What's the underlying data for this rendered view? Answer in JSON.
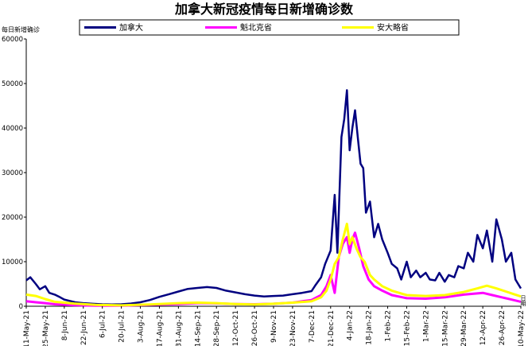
{
  "chart_data": {
    "type": "line",
    "title": "加拿大新冠疫情每日新增确诊数",
    "ylabel": "每日新增确诊",
    "xlabel": "日期",
    "ylim": [
      0,
      60000
    ],
    "yticks": [
      0,
      10000,
      20000,
      30000,
      40000,
      50000,
      60000
    ],
    "legend_position": "top",
    "grid": false,
    "x_ticks": [
      "11-May-21",
      "25-May-21",
      "8-Jun-21",
      "22-Jun-21",
      "6-Jul-21",
      "20-Jul-21",
      "3-Aug-21",
      "17-Aug-21",
      "31-Aug-21",
      "14-Sep-21",
      "28-Sep-21",
      "12-Oct-21",
      "26-Oct-21",
      "9-Nov-21",
      "23-Nov-21",
      "7-Dec-21",
      "21-Dec-21",
      "4-Jan-22",
      "18-Jan-22",
      "1-Feb-22",
      "15-Feb-22",
      "1-Mar-22",
      "15-Mar-22",
      "29-Mar-22",
      "12-Apr-22",
      "26-Apr-22",
      "10-May-22"
    ],
    "x_start": "2021-05-11",
    "x_end": "2022-05-10",
    "series": [
      {
        "name": "加拿大",
        "color": "#000080",
        "points": [
          [
            "2021-05-11",
            5800
          ],
          [
            "2021-05-14",
            6500
          ],
          [
            "2021-05-18",
            5000
          ],
          [
            "2021-05-21",
            3800
          ],
          [
            "2021-05-25",
            4500
          ],
          [
            "2021-05-28",
            3000
          ],
          [
            "2021-06-01",
            2600
          ],
          [
            "2021-06-05",
            2000
          ],
          [
            "2021-06-08",
            1500
          ],
          [
            "2021-06-12",
            1200
          ],
          [
            "2021-06-16",
            900
          ],
          [
            "2021-06-22",
            700
          ],
          [
            "2021-06-29",
            550
          ],
          [
            "2021-07-06",
            450
          ],
          [
            "2021-07-13",
            400
          ],
          [
            "2021-07-20",
            450
          ],
          [
            "2021-07-27",
            600
          ],
          [
            "2021-08-03",
            900
          ],
          [
            "2021-08-10",
            1400
          ],
          [
            "2021-08-17",
            2100
          ],
          [
            "2021-08-24",
            2700
          ],
          [
            "2021-08-31",
            3300
          ],
          [
            "2021-09-07",
            3900
          ],
          [
            "2021-09-14",
            4100
          ],
          [
            "2021-09-21",
            4300
          ],
          [
            "2021-09-28",
            4100
          ],
          [
            "2021-10-05",
            3500
          ],
          [
            "2021-10-12",
            3100
          ],
          [
            "2021-10-19",
            2700
          ],
          [
            "2021-10-26",
            2400
          ],
          [
            "2021-11-02",
            2200
          ],
          [
            "2021-11-09",
            2300
          ],
          [
            "2021-11-16",
            2400
          ],
          [
            "2021-11-23",
            2700
          ],
          [
            "2021-11-30",
            3000
          ],
          [
            "2021-12-07",
            3400
          ],
          [
            "2021-12-10",
            4800
          ],
          [
            "2021-12-14",
            6500
          ],
          [
            "2021-12-17",
            9500
          ],
          [
            "2021-12-21",
            12500
          ],
          [
            "2021-12-24",
            25000
          ],
          [
            "2021-12-26",
            12000
          ],
          [
            "2021-12-29",
            38000
          ],
          [
            "2021-12-31",
            42000
          ],
          [
            "2022-01-02",
            48500
          ],
          [
            "2022-01-04",
            35000
          ],
          [
            "2022-01-06",
            40000
          ],
          [
            "2022-01-08",
            44000
          ],
          [
            "2022-01-10",
            38000
          ],
          [
            "2022-01-12",
            32000
          ],
          [
            "2022-01-14",
            31000
          ],
          [
            "2022-01-16",
            21000
          ],
          [
            "2022-01-19",
            23500
          ],
          [
            "2022-01-22",
            15500
          ],
          [
            "2022-01-25",
            18500
          ],
          [
            "2022-01-28",
            15000
          ],
          [
            "2022-02-01",
            12000
          ],
          [
            "2022-02-04",
            9500
          ],
          [
            "2022-02-08",
            8500
          ],
          [
            "2022-02-11",
            6000
          ],
          [
            "2022-02-15",
            10000
          ],
          [
            "2022-02-18",
            6500
          ],
          [
            "2022-02-22",
            8000
          ],
          [
            "2022-02-25",
            6500
          ],
          [
            "2022-03-01",
            7500
          ],
          [
            "2022-03-04",
            6000
          ],
          [
            "2022-03-08",
            5800
          ],
          [
            "2022-03-11",
            7500
          ],
          [
            "2022-03-15",
            5500
          ],
          [
            "2022-03-18",
            7000
          ],
          [
            "2022-03-22",
            6500
          ],
          [
            "2022-03-25",
            9000
          ],
          [
            "2022-03-29",
            8500
          ],
          [
            "2022-04-01",
            12000
          ],
          [
            "2022-04-05",
            10000
          ],
          [
            "2022-04-08",
            16000
          ],
          [
            "2022-04-12",
            13000
          ],
          [
            "2022-04-15",
            17000
          ],
          [
            "2022-04-19",
            10000
          ],
          [
            "2022-04-22",
            19500
          ],
          [
            "2022-04-26",
            15000
          ],
          [
            "2022-04-29",
            10000
          ],
          [
            "2022-05-03",
            12000
          ],
          [
            "2022-05-06",
            6000
          ],
          [
            "2022-05-10",
            4000
          ]
        ]
      },
      {
        "name": "魁北克省",
        "color": "#ff00ff",
        "points": [
          [
            "2021-05-11",
            1100
          ],
          [
            "2021-05-18",
            900
          ],
          [
            "2021-05-25",
            700
          ],
          [
            "2021-06-01",
            450
          ],
          [
            "2021-06-15",
            250
          ],
          [
            "2021-07-01",
            150
          ],
          [
            "2021-07-20",
            120
          ],
          [
            "2021-08-10",
            300
          ],
          [
            "2021-08-31",
            500
          ],
          [
            "2021-09-14",
            700
          ],
          [
            "2021-09-28",
            650
          ],
          [
            "2021-10-12",
            500
          ],
          [
            "2021-10-26",
            450
          ],
          [
            "2021-11-09",
            550
          ],
          [
            "2021-11-23",
            800
          ],
          [
            "2021-12-07",
            1400
          ],
          [
            "2021-12-14",
            2500
          ],
          [
            "2021-12-18",
            4500
          ],
          [
            "2021-12-21",
            7000
          ],
          [
            "2021-12-24",
            3000
          ],
          [
            "2021-12-27",
            11000
          ],
          [
            "2021-12-30",
            14000
          ],
          [
            "2022-01-02",
            15500
          ],
          [
            "2022-01-04",
            12000
          ],
          [
            "2022-01-06",
            15000
          ],
          [
            "2022-01-08",
            16500
          ],
          [
            "2022-01-11",
            13000
          ],
          [
            "2022-01-14",
            9000
          ],
          [
            "2022-01-18",
            6000
          ],
          [
            "2022-01-22",
            4500
          ],
          [
            "2022-01-28",
            3500
          ],
          [
            "2022-02-04",
            2500
          ],
          [
            "2022-02-15",
            1800
          ],
          [
            "2022-03-01",
            1700
          ],
          [
            "2022-03-15",
            2000
          ],
          [
            "2022-03-29",
            2600
          ],
          [
            "2022-04-12",
            3000
          ],
          [
            "2022-04-19",
            2500
          ],
          [
            "2022-04-26",
            2000
          ],
          [
            "2022-05-03",
            1500
          ],
          [
            "2022-05-10",
            1000
          ]
        ]
      },
      {
        "name": "安大略省",
        "color": "#ffff00",
        "points": [
          [
            "2021-05-11",
            2600
          ],
          [
            "2021-05-18",
            2300
          ],
          [
            "2021-05-25",
            1600
          ],
          [
            "2021-06-01",
            1000
          ],
          [
            "2021-06-15",
            600
          ],
          [
            "2021-07-01",
            300
          ],
          [
            "2021-07-20",
            200
          ],
          [
            "2021-08-10",
            400
          ],
          [
            "2021-08-31",
            700
          ],
          [
            "2021-09-14",
            800
          ],
          [
            "2021-09-28",
            700
          ],
          [
            "2021-10-12",
            500
          ],
          [
            "2021-10-26",
            400
          ],
          [
            "2021-11-09",
            550
          ],
          [
            "2021-11-23",
            800
          ],
          [
            "2021-12-07",
            1100
          ],
          [
            "2021-12-14",
            2000
          ],
          [
            "2021-12-18",
            3500
          ],
          [
            "2021-12-21",
            6000
          ],
          [
            "2021-12-24",
            9500
          ],
          [
            "2021-12-27",
            11000
          ],
          [
            "2021-12-30",
            15000
          ],
          [
            "2022-01-02",
            18500
          ],
          [
            "2022-01-04",
            14000
          ],
          [
            "2022-01-06",
            15500
          ],
          [
            "2022-01-09",
            13000
          ],
          [
            "2022-01-12",
            11000
          ],
          [
            "2022-01-15",
            10000
          ],
          [
            "2022-01-19",
            7000
          ],
          [
            "2022-01-22",
            6000
          ],
          [
            "2022-01-28",
            4500
          ],
          [
            "2022-02-04",
            3500
          ],
          [
            "2022-02-15",
            2500
          ],
          [
            "2022-03-01",
            2300
          ],
          [
            "2022-03-15",
            2500
          ],
          [
            "2022-03-29",
            3200
          ],
          [
            "2022-04-08",
            4000
          ],
          [
            "2022-04-15",
            4600
          ],
          [
            "2022-04-22",
            4000
          ],
          [
            "2022-04-29",
            3300
          ],
          [
            "2022-05-05",
            2700
          ],
          [
            "2022-05-10",
            2200
          ]
        ]
      }
    ]
  }
}
